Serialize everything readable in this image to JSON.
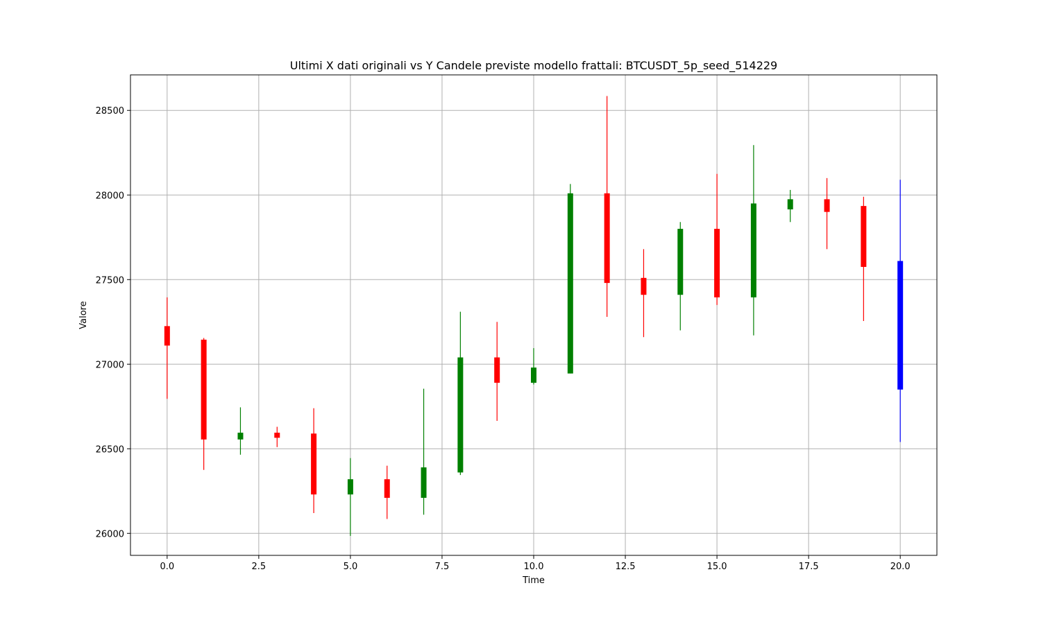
{
  "chart_data": {
    "type": "candlestick",
    "title": "Ultimi X dati originali vs Y Candele previste modello frattali: BTCUSDT_5p_seed_514229",
    "xlabel": "Time",
    "ylabel": "Valore",
    "xlim": [
      -1,
      21
    ],
    "ylim": [
      25870,
      28710
    ],
    "xticks": [
      0,
      2.5,
      5,
      7.5,
      10,
      12.5,
      15,
      17.5,
      20
    ],
    "xtick_labels": [
      "0.0",
      "2.5",
      "5.0",
      "7.5",
      "10.0",
      "12.5",
      "15.0",
      "17.5",
      "20.0"
    ],
    "yticks": [
      26000,
      26500,
      27000,
      27500,
      28000,
      28500
    ],
    "ytick_labels": [
      "26000",
      "26500",
      "27000",
      "27500",
      "28000",
      "28500"
    ],
    "grid": true,
    "colors": {
      "up": "#008000",
      "down": "#ff0000",
      "predicted": "#0000ff"
    },
    "candles": [
      {
        "x": 0,
        "open": 27225,
        "high": 27395,
        "low": 26795,
        "close": 27110,
        "kind": "down"
      },
      {
        "x": 1,
        "open": 27145,
        "high": 27155,
        "low": 26375,
        "close": 26555,
        "kind": "down"
      },
      {
        "x": 2,
        "open": 26555,
        "high": 26745,
        "low": 26465,
        "close": 26595,
        "kind": "up"
      },
      {
        "x": 3,
        "open": 26595,
        "high": 26630,
        "low": 26510,
        "close": 26565,
        "kind": "down"
      },
      {
        "x": 4,
        "open": 26590,
        "high": 26740,
        "low": 26120,
        "close": 26230,
        "kind": "down"
      },
      {
        "x": 5,
        "open": 26230,
        "high": 26445,
        "low": 25985,
        "close": 26320,
        "kind": "up"
      },
      {
        "x": 6,
        "open": 26320,
        "high": 26400,
        "low": 26085,
        "close": 26210,
        "kind": "down"
      },
      {
        "x": 7,
        "open": 26210,
        "high": 26855,
        "low": 26110,
        "close": 26390,
        "kind": "up"
      },
      {
        "x": 8,
        "open": 26360,
        "high": 27310,
        "low": 26345,
        "close": 27040,
        "kind": "up"
      },
      {
        "x": 9,
        "open": 27040,
        "high": 27250,
        "low": 26665,
        "close": 26890,
        "kind": "down"
      },
      {
        "x": 10,
        "open": 26890,
        "high": 27095,
        "low": 26880,
        "close": 26980,
        "kind": "up"
      },
      {
        "x": 11,
        "open": 26945,
        "high": 28065,
        "low": 26945,
        "close": 28010,
        "kind": "up"
      },
      {
        "x": 12,
        "open": 28010,
        "high": 28585,
        "low": 27280,
        "close": 27480,
        "kind": "down"
      },
      {
        "x": 13,
        "open": 27510,
        "high": 27680,
        "low": 27160,
        "close": 27410,
        "kind": "down"
      },
      {
        "x": 14,
        "open": 27410,
        "high": 27840,
        "low": 27200,
        "close": 27800,
        "kind": "up"
      },
      {
        "x": 15,
        "open": 27800,
        "high": 28125,
        "low": 27350,
        "close": 27395,
        "kind": "down"
      },
      {
        "x": 16,
        "open": 27395,
        "high": 28295,
        "low": 27170,
        "close": 27950,
        "kind": "up"
      },
      {
        "x": 17,
        "open": 27915,
        "high": 28030,
        "low": 27840,
        "close": 27975,
        "kind": "up"
      },
      {
        "x": 18,
        "open": 27975,
        "high": 28100,
        "low": 27680,
        "close": 27900,
        "kind": "down"
      },
      {
        "x": 19,
        "open": 27935,
        "high": 27990,
        "low": 27255,
        "close": 27575,
        "kind": "down"
      },
      {
        "x": 20,
        "open": 27610,
        "high": 28090,
        "low": 26540,
        "close": 26850,
        "kind": "predicted"
      }
    ]
  }
}
